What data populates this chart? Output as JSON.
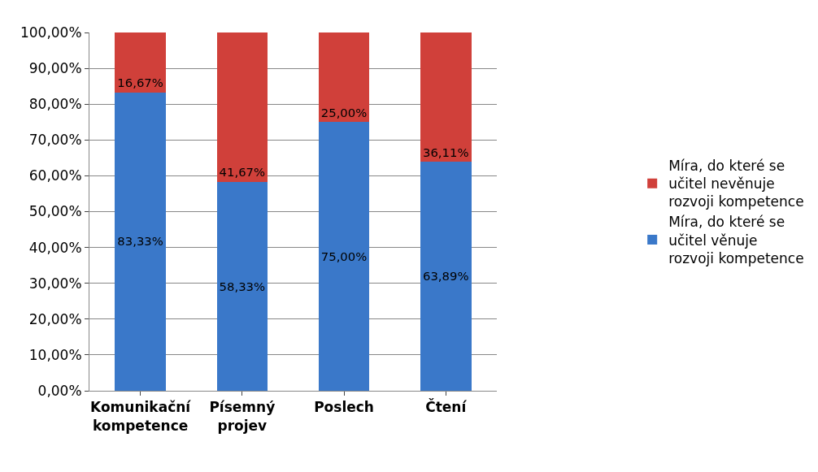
{
  "chart_data": {
    "type": "bar",
    "stacked": true,
    "categories": [
      "Komunikační kompetence",
      "Písemný projev",
      "Poslech",
      "Čtení"
    ],
    "series": [
      {
        "name": "Míra, do které se učitel věnuje rozvoji kompetence",
        "color": "#3a78c9",
        "values": [
          83.33,
          58.33,
          75.0,
          63.89
        ],
        "value_labels": [
          "83,33%",
          "58,33%",
          "75,00%",
          "63,89%"
        ]
      },
      {
        "name": "Míra, do které se učitel nevěnuje rozvoji kompetence",
        "color": "#d0403a",
        "values": [
          16.67,
          41.67,
          25.0,
          36.11
        ],
        "value_labels": [
          "16,67%",
          "41,67%",
          "25,00%",
          "36,11%"
        ]
      }
    ],
    "ylim": [
      0,
      100
    ],
    "yticks": [
      {
        "value": 0,
        "label": "0,00%"
      },
      {
        "value": 10,
        "label": "10,00%"
      },
      {
        "value": 20,
        "label": "20,00%"
      },
      {
        "value": 30,
        "label": "30,00%"
      },
      {
        "value": 40,
        "label": "40,00%"
      },
      {
        "value": 50,
        "label": "50,00%"
      },
      {
        "value": 60,
        "label": "60,00%"
      },
      {
        "value": 70,
        "label": "70,00%"
      },
      {
        "value": 80,
        "label": "80,00%"
      },
      {
        "value": 90,
        "label": "90,00%"
      },
      {
        "value": 100,
        "label": "100,00%"
      }
    ],
    "grid": "y",
    "legend": "right"
  }
}
